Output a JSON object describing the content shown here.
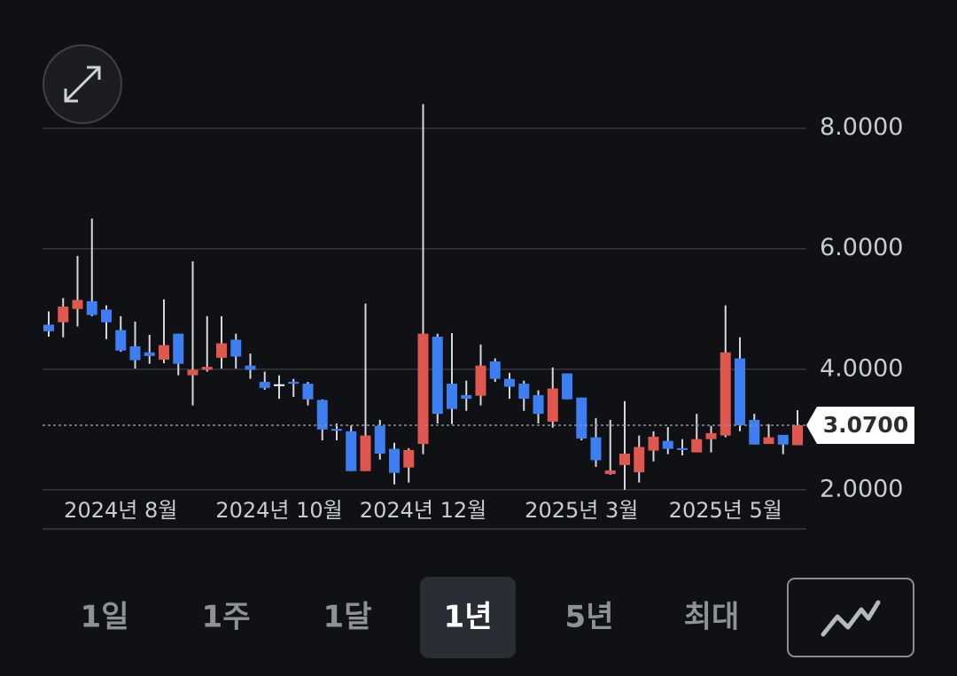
{
  "chart_data": {
    "type": "candlestick",
    "categories": [
      null,
      null,
      null,
      null,
      null,
      "2024년 8월",
      null,
      null,
      null,
      null,
      null,
      null,
      null,
      null,
      null,
      null,
      "2024년 10월",
      null,
      null,
      null,
      null,
      null,
      null,
      null,
      null,
      null,
      "2024년 12월",
      null,
      null,
      null,
      null,
      null,
      null,
      null,
      null,
      null,
      null,
      "2025년 3월",
      null,
      null,
      null,
      null,
      null,
      null,
      null,
      null,
      null,
      "2025년 5월",
      null,
      null,
      null,
      null,
      null
    ],
    "open": [
      4.74,
      4.78,
      5.0,
      5.13,
      4.99,
      4.65,
      4.38,
      4.28,
      4.16,
      4.59,
      3.9,
      3.99,
      4.19,
      4.49,
      4.06,
      3.79,
      3.75,
      3.79,
      3.76,
      3.49,
      3.01,
      2.97,
      2.31,
      3.06,
      2.68,
      2.37,
      2.76,
      4.54,
      3.76,
      3.57,
      3.56,
      4.13,
      3.84,
      3.76,
      3.57,
      3.13,
      3.93,
      3.53,
      2.87,
      2.26,
      2.41,
      2.29,
      2.65,
      2.81,
      2.69,
      2.62,
      2.84,
      2.9,
      4.18,
      3.16,
      2.76,
      2.91,
      2.74
    ],
    "high": [
      4.96,
      5.18,
      5.88,
      6.5,
      5.06,
      4.88,
      4.79,
      4.57,
      5.16,
      4.59,
      5.79,
      4.88,
      4.88,
      4.59,
      4.26,
      3.96,
      3.9,
      3.84,
      3.79,
      3.5,
      3.1,
      3.07,
      5.09,
      3.16,
      2.78,
      2.69,
      8.4,
      4.59,
      4.6,
      3.81,
      4.41,
      4.18,
      3.94,
      3.81,
      3.65,
      4.03,
      3.93,
      3.53,
      3.19,
      3.16,
      3.47,
      2.9,
      2.97,
      3.04,
      2.84,
      3.26,
      3.06,
      5.06,
      4.53,
      3.26,
      3.09,
      2.91,
      3.32
    ],
    "low": [
      4.54,
      4.53,
      4.71,
      4.88,
      4.5,
      4.29,
      4.01,
      4.09,
      4.1,
      3.9,
      3.4,
      3.96,
      4.01,
      4.01,
      3.84,
      3.66,
      3.51,
      3.54,
      3.4,
      2.82,
      2.82,
      2.31,
      2.31,
      2.5,
      2.09,
      2.12,
      2.59,
      3.1,
      3.09,
      3.31,
      3.4,
      3.79,
      3.51,
      3.31,
      3.1,
      3.03,
      3.5,
      2.82,
      2.38,
      2.25,
      2.0,
      2.12,
      2.47,
      2.59,
      2.57,
      2.62,
      2.62,
      2.87,
      2.97,
      2.75,
      2.76,
      2.59,
      2.74
    ],
    "close": [
      4.63,
      5.04,
      5.15,
      4.9,
      4.78,
      4.31,
      4.15,
      4.22,
      4.4,
      4.09,
      3.99,
      4.04,
      4.43,
      4.21,
      3.99,
      3.69,
      3.75,
      3.76,
      3.5,
      3.0,
      3.0,
      2.31,
      2.9,
      2.6,
      2.28,
      2.66,
      4.59,
      3.26,
      3.34,
      3.51,
      4.06,
      3.84,
      3.71,
      3.51,
      3.26,
      3.68,
      3.5,
      2.85,
      2.49,
      2.32,
      2.6,
      2.71,
      2.88,
      2.68,
      2.66,
      2.84,
      2.94,
      4.28,
      3.07,
      2.75,
      2.87,
      2.75,
      3.07
    ],
    "up_color": "#e0574f",
    "down_color": "#3d7ff2",
    "ylim": [
      1.35,
      8.51
    ],
    "yticks": [
      {
        "value": 2,
        "label": "2.0000"
      },
      {
        "value": 4,
        "label": "4.0000"
      },
      {
        "value": 6,
        "label": "6.0000"
      },
      {
        "value": 8,
        "label": "8.0000"
      }
    ],
    "grid": true,
    "last_price": {
      "value": 3.07,
      "label": "3.0700"
    }
  },
  "range_buttons": [
    "1일",
    "1주",
    "1달",
    "1년",
    "5년",
    "최대"
  ],
  "selected_range": "1년"
}
